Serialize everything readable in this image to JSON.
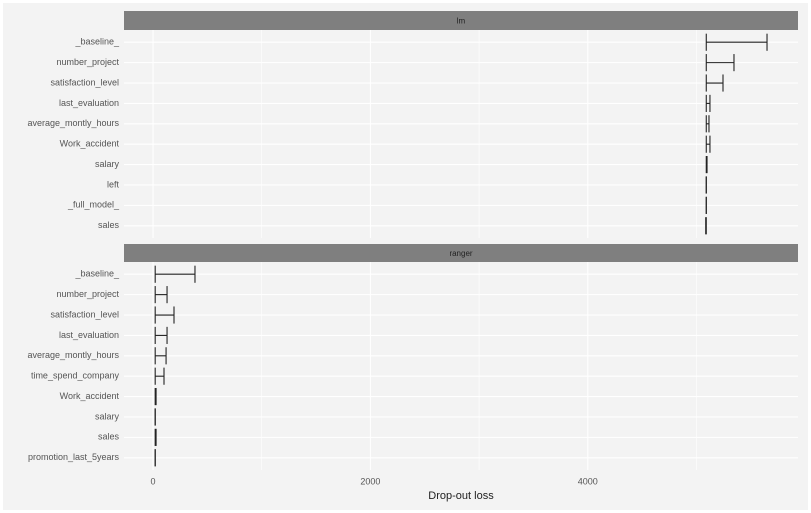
{
  "chart_data": [
    {
      "type": "errorbar",
      "title": "lm",
      "categories": [
        "_baseline_",
        "number_project",
        "satisfaction_level",
        "last_evaluation",
        "average_montly_hours",
        "Work_accident",
        "salary",
        "left",
        "_full_model_",
        "sales"
      ],
      "full_model_loss": 5090,
      "values": [
        5649,
        5345,
        5244,
        5124,
        5115,
        5124,
        5097,
        5090,
        5090,
        5085
      ],
      "xlim": [
        -267,
        5934
      ],
      "xticks": [
        0,
        2000,
        4000
      ],
      "minor_xticks": [
        1000,
        3000,
        5000
      ],
      "grid": true,
      "color": "#222222"
    },
    {
      "type": "errorbar",
      "title": "ranger",
      "categories": [
        "_baseline_",
        "number_project",
        "satisfaction_level",
        "last_evaluation",
        "average_montly_hours",
        "time_spend_company",
        "Work_accident",
        "salary",
        "sales",
        "promotion_last_5years"
      ],
      "full_model_loss": 20,
      "values": [
        386,
        129,
        193,
        129,
        120,
        101,
        28,
        20,
        28,
        20
      ],
      "xlim": [
        -267,
        5934
      ],
      "xticks": [
        0,
        2000,
        4000
      ],
      "minor_xticks": [
        1000,
        3000,
        5000
      ],
      "grid": true,
      "color": "#222222",
      "xlabel": "Drop-out loss"
    }
  ]
}
